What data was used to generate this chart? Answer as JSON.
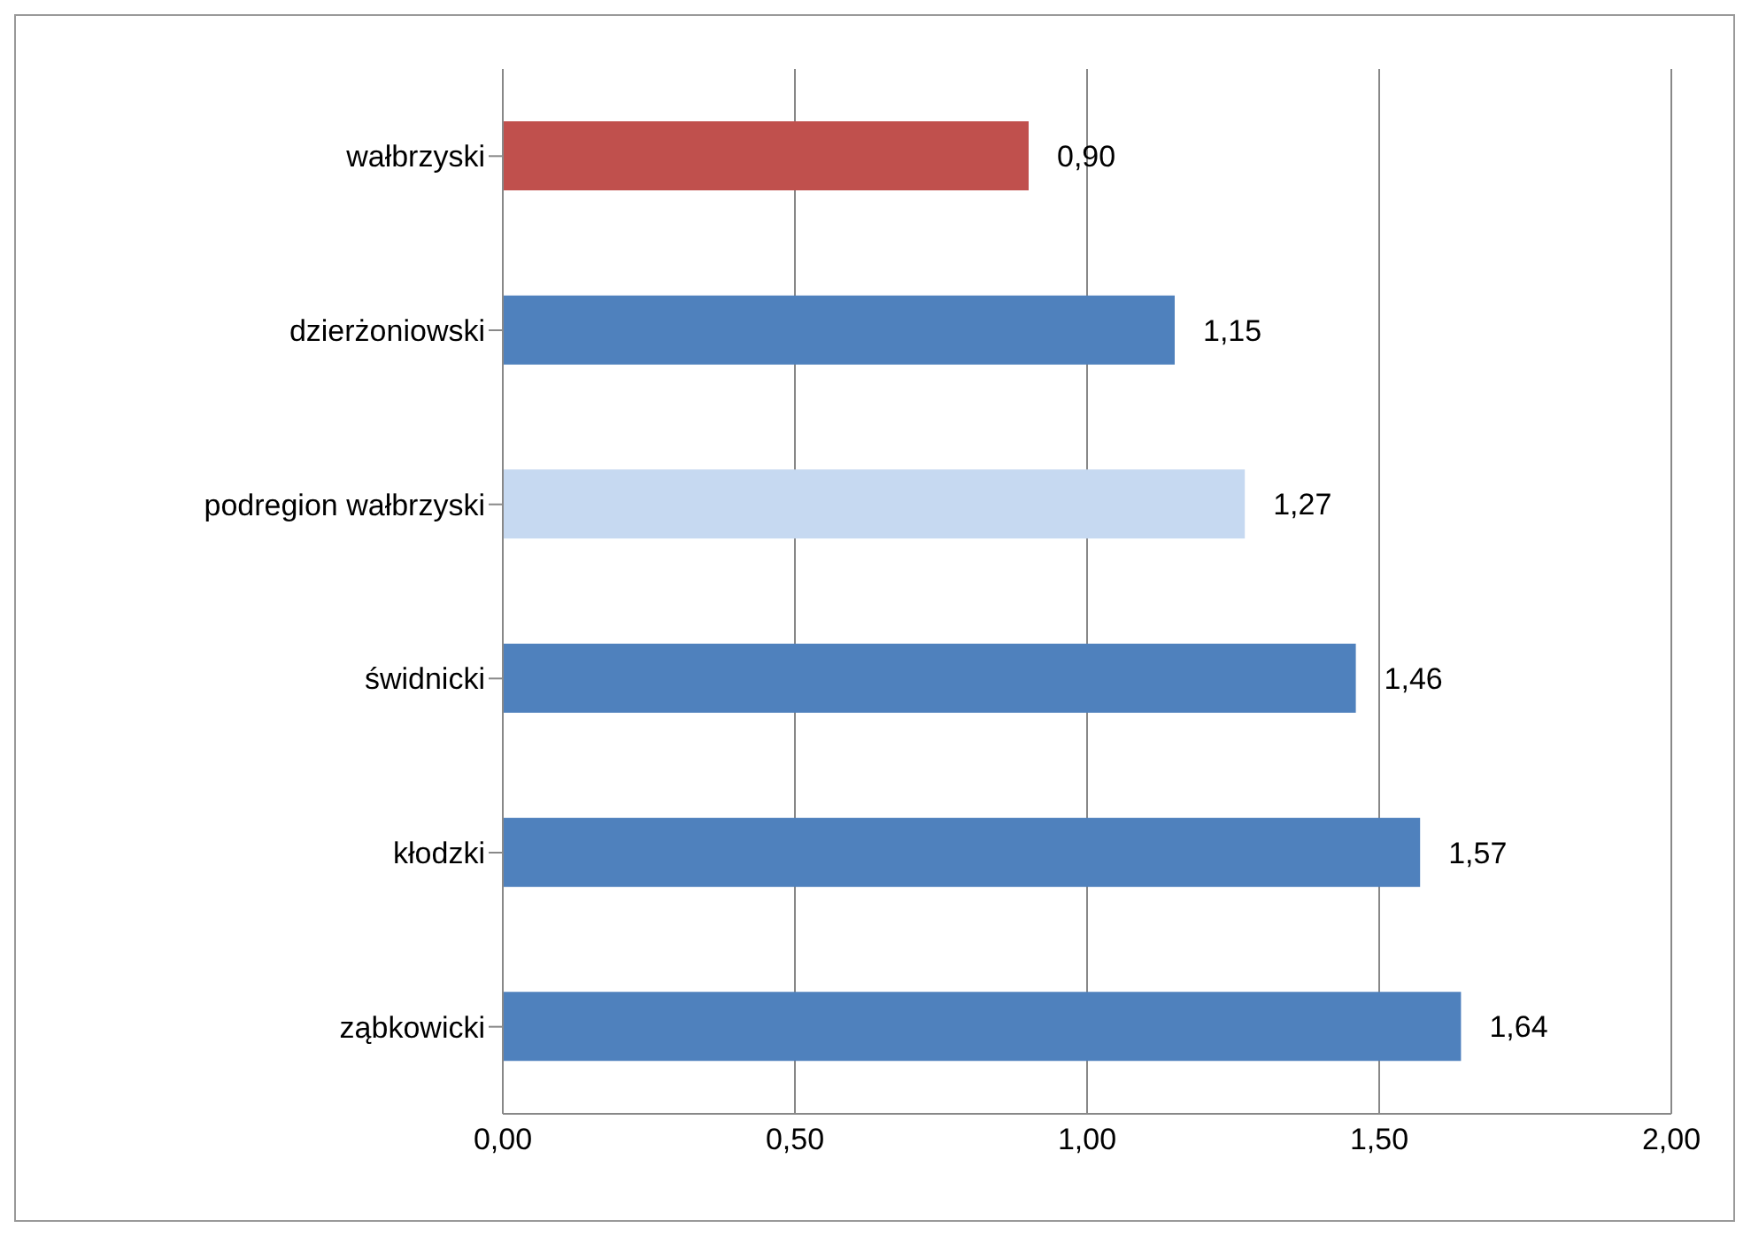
{
  "chart_data": {
    "type": "bar",
    "orientation": "horizontal",
    "categories": [
      "wałbrzyski",
      "dzierżoniowski",
      "podregion wałbrzyski",
      "świdnicki",
      "kłodzki",
      "ząbkowicki"
    ],
    "values": [
      0.9,
      1.15,
      1.27,
      1.46,
      1.57,
      1.64
    ],
    "colors": [
      "#c0504d",
      "#4f81bd",
      "#c6d9f1",
      "#4f81bd",
      "#4f81bd",
      "#4f81bd"
    ],
    "value_labels": [
      "0,90",
      "1,15",
      "1,27",
      "1,46",
      "1,57",
      "1,64"
    ],
    "xlim": [
      0,
      2
    ],
    "xticks": [
      {
        "value": 0,
        "label": "0,00"
      },
      {
        "value": 0.5,
        "label": "0,50"
      },
      {
        "value": 1,
        "label": "1,00"
      },
      {
        "value": 1.5,
        "label": "1,50"
      },
      {
        "value": 2,
        "label": "2,00"
      }
    ],
    "grid": "x",
    "legend": false
  }
}
